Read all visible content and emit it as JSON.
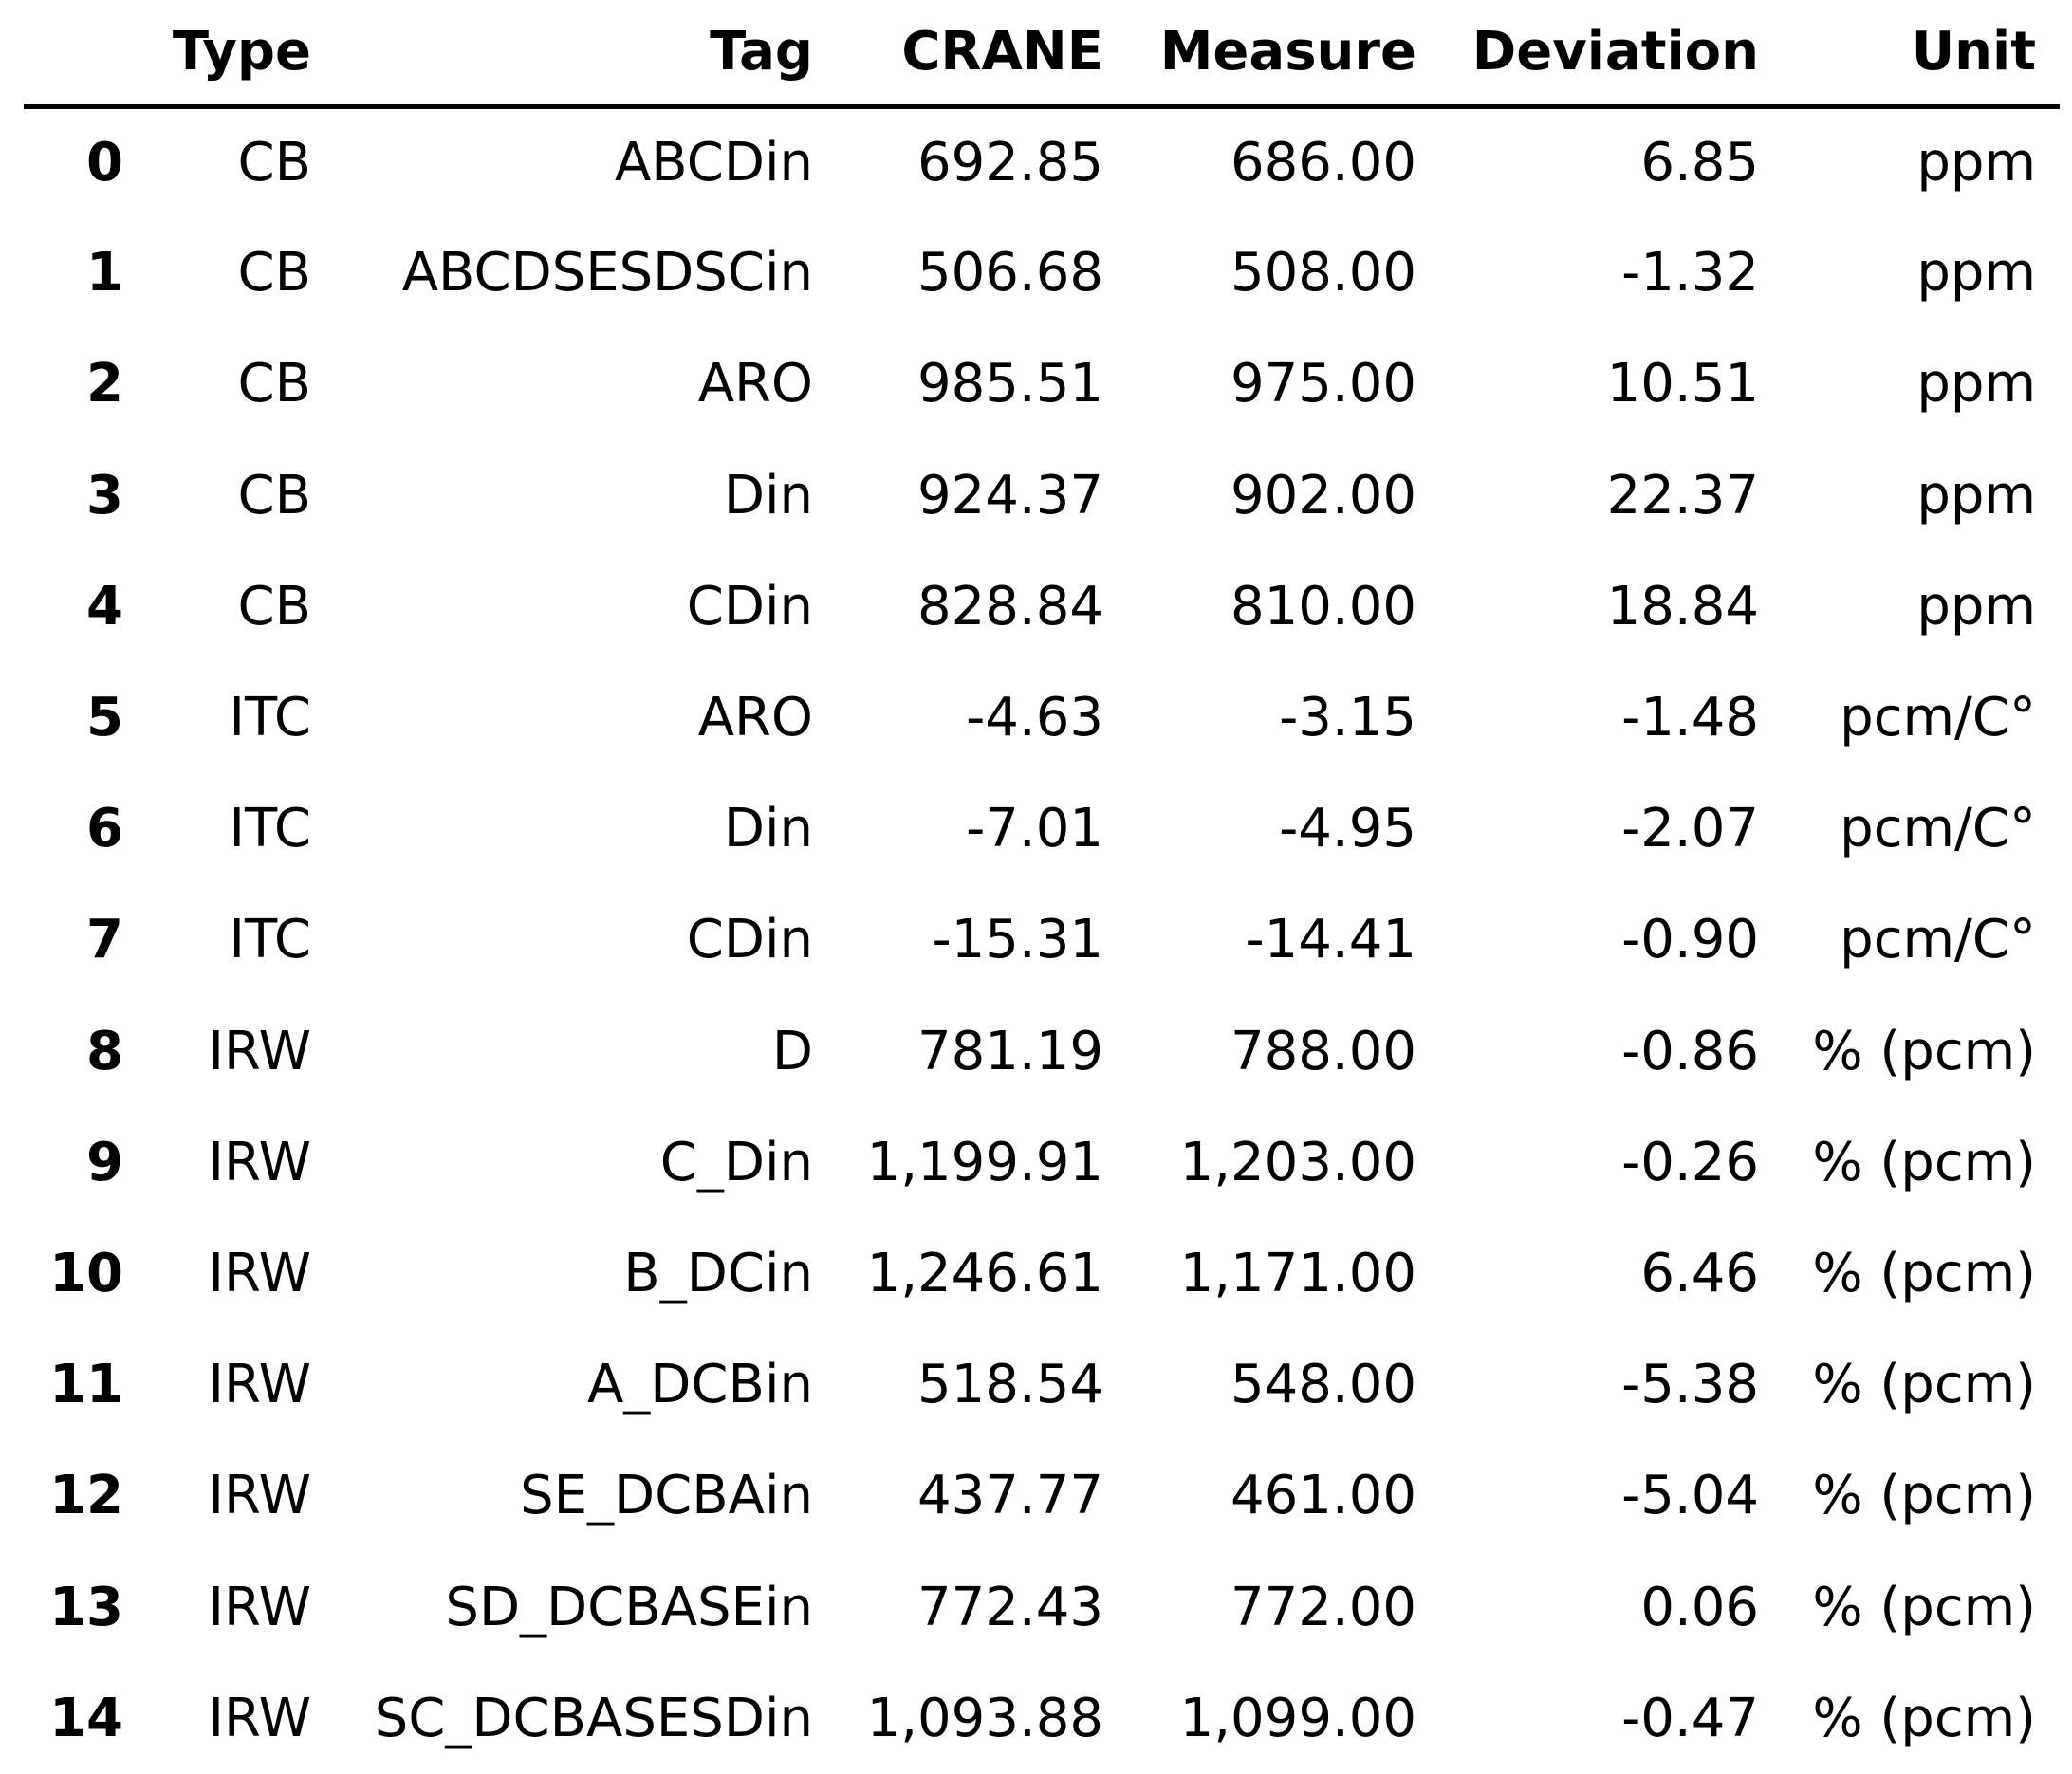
{
  "chart_data": {
    "type": "table",
    "columns": [
      "",
      "Type",
      "Tag",
      "CRANE",
      "Measure",
      "Deviation",
      "Unit"
    ],
    "rows": [
      {
        "index": "0",
        "type": "CB",
        "tag": "ABCDin",
        "crane": "692.85",
        "measure": "686.00",
        "deviation": "6.85",
        "unit": "ppm"
      },
      {
        "index": "1",
        "type": "CB",
        "tag": "ABCDSESDSCin",
        "crane": "506.68",
        "measure": "508.00",
        "deviation": "-1.32",
        "unit": "ppm"
      },
      {
        "index": "2",
        "type": "CB",
        "tag": "ARO",
        "crane": "985.51",
        "measure": "975.00",
        "deviation": "10.51",
        "unit": "ppm"
      },
      {
        "index": "3",
        "type": "CB",
        "tag": "Din",
        "crane": "924.37",
        "measure": "902.00",
        "deviation": "22.37",
        "unit": "ppm"
      },
      {
        "index": "4",
        "type": "CB",
        "tag": "CDin",
        "crane": "828.84",
        "measure": "810.00",
        "deviation": "18.84",
        "unit": "ppm"
      },
      {
        "index": "5",
        "type": "ITC",
        "tag": "ARO",
        "crane": "-4.63",
        "measure": "-3.15",
        "deviation": "-1.48",
        "unit": "pcm/C°"
      },
      {
        "index": "6",
        "type": "ITC",
        "tag": "Din",
        "crane": "-7.01",
        "measure": "-4.95",
        "deviation": "-2.07",
        "unit": "pcm/C°"
      },
      {
        "index": "7",
        "type": "ITC",
        "tag": "CDin",
        "crane": "-15.31",
        "measure": "-14.41",
        "deviation": "-0.90",
        "unit": "pcm/C°"
      },
      {
        "index": "8",
        "type": "IRW",
        "tag": "D",
        "crane": "781.19",
        "measure": "788.00",
        "deviation": "-0.86",
        "unit": "% (pcm)"
      },
      {
        "index": "9",
        "type": "IRW",
        "tag": "C_Din",
        "crane": "1,199.91",
        "measure": "1,203.00",
        "deviation": "-0.26",
        "unit": "% (pcm)"
      },
      {
        "index": "10",
        "type": "IRW",
        "tag": "B_DCin",
        "crane": "1,246.61",
        "measure": "1,171.00",
        "deviation": "6.46",
        "unit": "% (pcm)"
      },
      {
        "index": "11",
        "type": "IRW",
        "tag": "A_DCBin",
        "crane": "518.54",
        "measure": "548.00",
        "deviation": "-5.38",
        "unit": "% (pcm)"
      },
      {
        "index": "12",
        "type": "IRW",
        "tag": "SE_DCBAin",
        "crane": "437.77",
        "measure": "461.00",
        "deviation": "-5.04",
        "unit": "% (pcm)"
      },
      {
        "index": "13",
        "type": "IRW",
        "tag": "SD_DCBASEin",
        "crane": "772.43",
        "measure": "772.00",
        "deviation": "0.06",
        "unit": "% (pcm)"
      },
      {
        "index": "14",
        "type": "IRW",
        "tag": "SC_DCBASESDin",
        "crane": "1,093.88",
        "measure": "1,099.00",
        "deviation": "-0.47",
        "unit": "% (pcm)"
      }
    ]
  }
}
